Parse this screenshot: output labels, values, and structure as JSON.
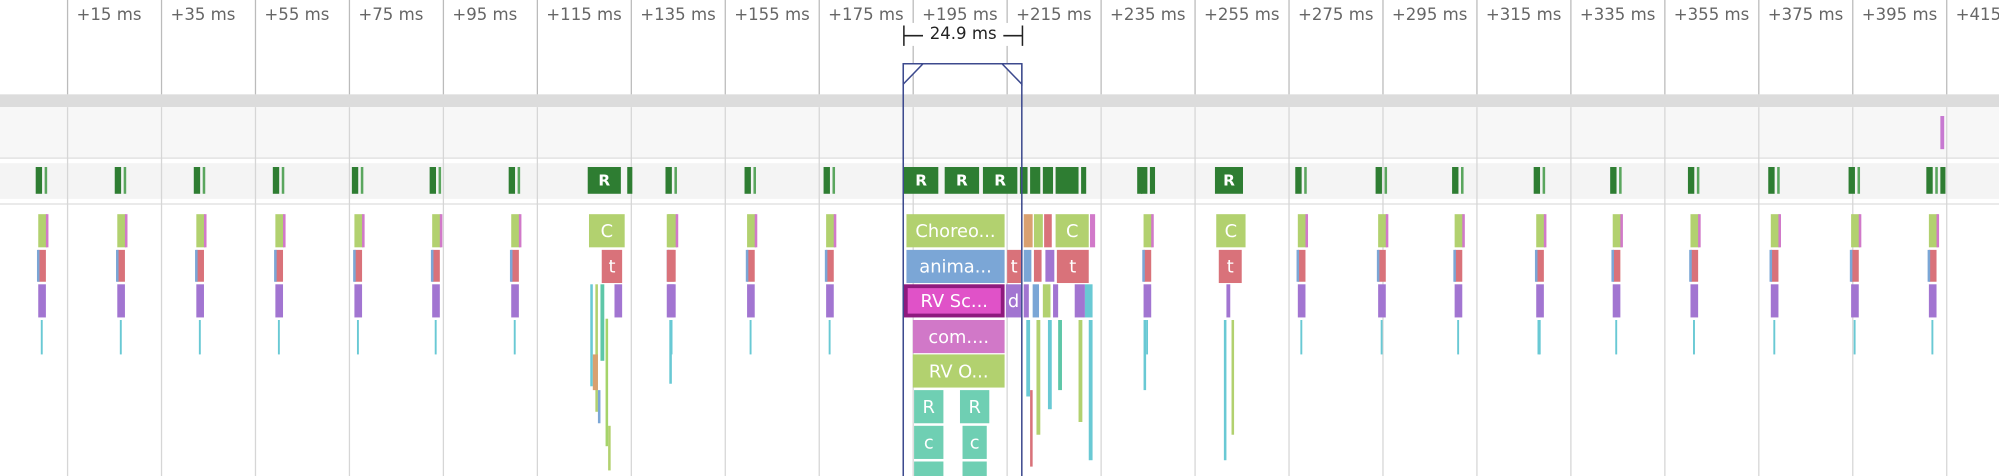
{
  "timeline": {
    "ticks": [
      "+15 ms",
      "+35 ms",
      "+55 ms",
      "+75 ms",
      "+95 ms",
      "+115 ms",
      "+135 ms",
      "+155 ms",
      "+175 ms",
      "+195 ms",
      "+215 ms",
      "+235 ms",
      "+255 ms",
      "+275 ms",
      "+295 ms",
      "+315 ms",
      "+335 ms",
      "+355 ms",
      "+375 ms",
      "+395 ms",
      "+415"
    ],
    "selection": {
      "label": "24.9 ms"
    },
    "frame_slices": [
      "R",
      "R",
      "R",
      "R",
      "R"
    ],
    "thread_slices": [
      "C",
      "t",
      "Choreo...",
      "anima...",
      "RV Sc...",
      "d",
      "com....",
      "RV O...",
      "t",
      "C",
      "t",
      "R",
      "R",
      "c",
      "c",
      "C",
      "t"
    ]
  }
}
